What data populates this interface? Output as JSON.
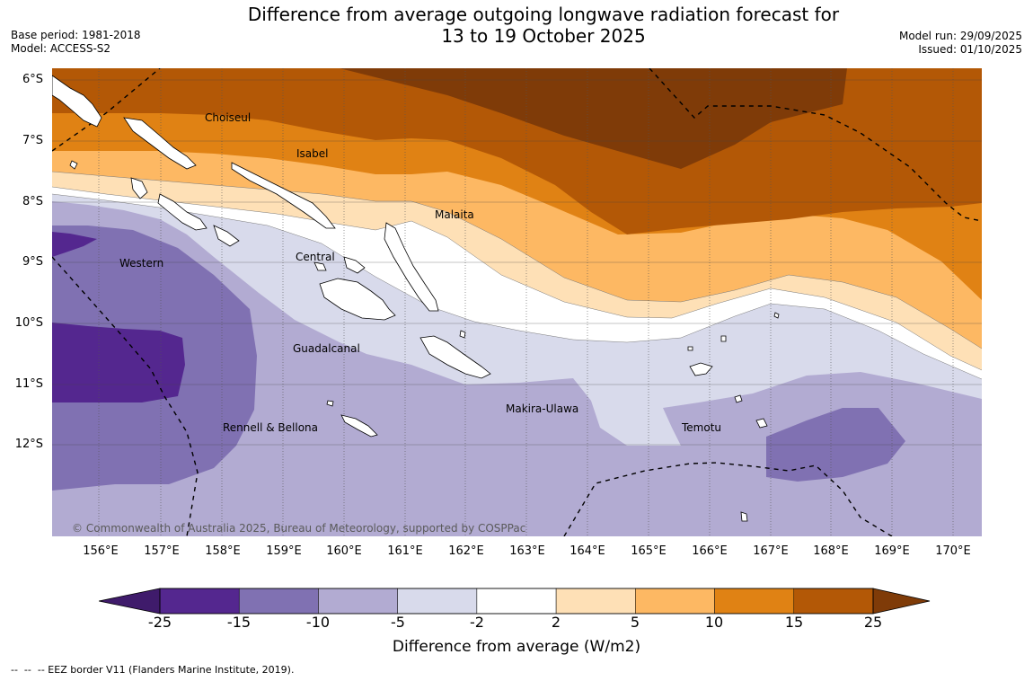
{
  "header": {
    "title_line1": "Difference from average outgoing longwave radiation forecast for",
    "title_line2": "13 to 19 October 2025",
    "base_period": "Base period: 1981-2018",
    "model": "Model: ACCESS-S2",
    "model_run": "Model run: 29/09/2025",
    "issued": "Issued: 01/10/2025"
  },
  "map": {
    "lat_labels": [
      "6°S",
      "7°S",
      "8°S",
      "9°S",
      "10°S",
      "11°S",
      "12°S"
    ],
    "lon_labels": [
      "156°E",
      "157°E",
      "158°E",
      "159°E",
      "160°E",
      "161°E",
      "162°E",
      "163°E",
      "164°E",
      "165°E",
      "166°E",
      "167°E",
      "168°E",
      "169°E",
      "170°E"
    ],
    "regions": {
      "choiseul": "Choiseul",
      "isabel": "Isabel",
      "malaita": "Malaita",
      "central": "Central",
      "western": "Western",
      "guadalcanal": "Guadalcanal",
      "makira": "Makira-Ulawa",
      "temotu": "Temotu",
      "rennell": "Rennell & Bellona"
    },
    "copyright": "© Commonwealth of Australia 2025, Bureau of Meteorology, supported by COSPPac"
  },
  "colorbar": {
    "ticks": [
      "-25",
      "-15",
      "-10",
      "-5",
      "-2",
      "2",
      "5",
      "10",
      "15",
      "25"
    ],
    "colors": [
      "#3f1b6b",
      "#54278f",
      "#8071b2",
      "#b2abd2",
      "#d8daeb",
      "#ffffff",
      "#fee0b6",
      "#fdb863",
      "#e08214",
      "#b35806",
      "#7f3b08"
    ],
    "label": "Difference from average (W/m2)"
  },
  "footer": {
    "eez_note": "--  --  -- EEZ border V11 (Flanders Marine Institute, 2019)."
  }
}
